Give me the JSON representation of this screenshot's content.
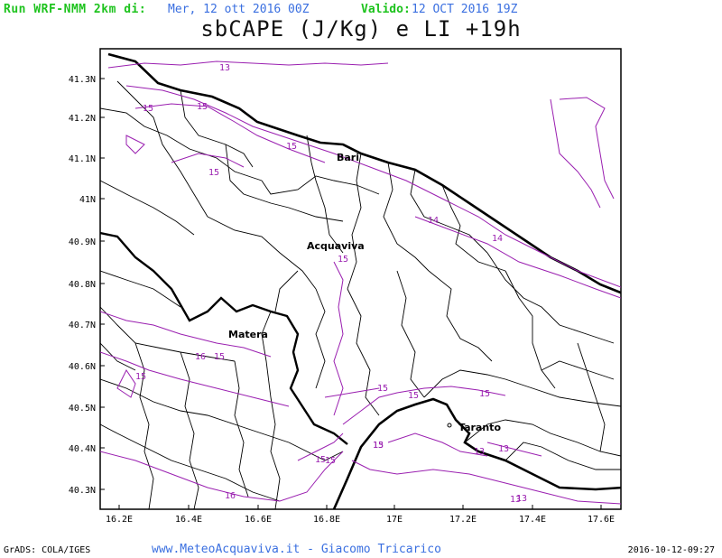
{
  "header": {
    "run_label": "Run WRF-NMM 2km di:",
    "run_date": "Mer, 12 ott 2016 00Z",
    "valid_label": "Valido:",
    "valid_date": "12 OCT 2016 19Z"
  },
  "title": "sbCAPE (J/Kg) e LI +19h",
  "map": {
    "lat_ticks": [
      "41.3N",
      "41.2N",
      "41.1N",
      "41N",
      "40.9N",
      "40.8N",
      "40.7N",
      "40.6N",
      "40.5N",
      "40.4N",
      "40.3N"
    ],
    "lon_ticks": [
      "16.2E",
      "16.4E",
      "16.6E",
      "16.8E",
      "17E",
      "17.2E",
      "17.4E",
      "17.6E"
    ],
    "cities": [
      {
        "id": "bari",
        "label": "Bari"
      },
      {
        "id": "acquaviva",
        "label": "Acquaviva"
      },
      {
        "id": "matera",
        "label": "Matera"
      },
      {
        "id": "taranto",
        "label": "Taranto"
      }
    ],
    "contour_labels": [
      "13",
      "15",
      "15",
      "15",
      "15",
      "15",
      "14",
      "14",
      "15",
      "15",
      "16",
      "15",
      "15",
      "15",
      "15",
      "15",
      "13",
      "13",
      "13",
      "13",
      "15",
      "16",
      "13"
    ],
    "colors": {
      "contour": "#9a1fb0",
      "border": "#000000",
      "frame": "#000000"
    }
  },
  "footer": {
    "left": "GrADS: COLA/IGES",
    "center": "www.MeteoAcquaviva.it  -  Giacomo Tricarico",
    "right": "2016-10-12-09:27"
  }
}
